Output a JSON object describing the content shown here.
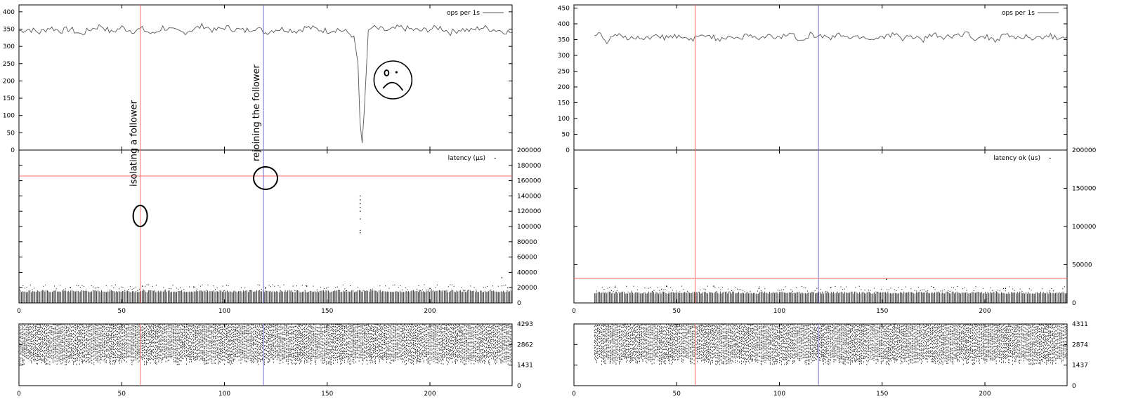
{
  "chart_data": [
    {
      "type": "line",
      "panel": "left-throughput",
      "legend": "ops per 1s",
      "legend_position": "top-right",
      "xlim": [
        0,
        240
      ],
      "ylim": [
        0,
        420
      ],
      "yticks": [
        "0",
        "50",
        "100",
        "150",
        "200",
        "250",
        "300",
        "350",
        "400"
      ],
      "series": [
        {
          "name": "ops per 1s",
          "x": [
            0,
            5,
            10,
            15,
            20,
            25,
            30,
            35,
            40,
            45,
            50,
            55,
            60,
            65,
            70,
            75,
            80,
            85,
            90,
            95,
            100,
            105,
            110,
            115,
            120,
            125,
            130,
            135,
            140,
            145,
            150,
            155,
            160,
            163,
            165,
            166,
            167,
            168,
            170,
            172,
            175,
            180,
            185,
            190,
            195,
            200,
            205,
            210,
            215,
            220,
            225,
            230,
            235,
            240
          ],
          "y": [
            345,
            350,
            340,
            355,
            345,
            350,
            335,
            350,
            360,
            340,
            355,
            345,
            350,
            335,
            355,
            345,
            340,
            350,
            360,
            345,
            355,
            350,
            345,
            355,
            340,
            350,
            350,
            345,
            355,
            350,
            345,
            350,
            340,
            330,
            250,
            80,
            20,
            110,
            340,
            355,
            350,
            345,
            355,
            350,
            345,
            350,
            355,
            340,
            350,
            345,
            355,
            350,
            345,
            340
          ]
        }
      ],
      "annotations": [
        {
          "text": "isolating a follower",
          "x": 59
        },
        {
          "text": "rejoining the follower",
          "x": 118
        },
        {
          "text": "☹",
          "x": 182
        }
      ]
    },
    {
      "type": "scatter",
      "panel": "left-latency",
      "legend": "latency (μs)",
      "legend_position": "top-right",
      "xlim": [
        0,
        240
      ],
      "ylim": [
        0,
        200000
      ],
      "yticks": [
        "0",
        "20000",
        "40000",
        "60000",
        "80000",
        "100000",
        "120000",
        "140000",
        "160000",
        "180000",
        "200000"
      ],
      "xticks": [
        "0",
        "50",
        "100",
        "150",
        "200"
      ],
      "threshold": 166000,
      "series": [
        {
          "name": "latency (μs)",
          "band": [
            0,
            14000
          ],
          "outliers": [
            [
              25,
              20000
            ],
            [
              60,
              22000
            ],
            [
              85,
              21000
            ],
            [
              120,
              20000
            ],
            [
              140,
              22000
            ],
            [
              166,
              95000
            ],
            [
              166,
              92000
            ],
            [
              166,
              110000
            ],
            [
              166,
              120000
            ],
            [
              166,
              125000
            ],
            [
              166,
              130000
            ],
            [
              166,
              135000
            ],
            [
              166,
              140000
            ],
            [
              200,
              19000
            ],
            [
              235,
              33000
            ]
          ]
        }
      ]
    },
    {
      "type": "scatter",
      "panel": "left-size",
      "xlim": [
        0,
        240
      ],
      "ylim": [
        0,
        4293
      ],
      "yticks": [
        "0",
        "1431",
        "2862",
        "4293"
      ],
      "xticks": [
        "0",
        "50",
        "100",
        "150",
        "200"
      ],
      "series": [
        {
          "band": [
            1431,
            4293
          ]
        }
      ]
    },
    {
      "type": "line",
      "panel": "right-throughput",
      "legend": "ops per 1s",
      "legend_position": "top-right",
      "xlim": [
        0,
        240
      ],
      "ylim": [
        0,
        460
      ],
      "yticks": [
        "0",
        "50",
        "100",
        "150",
        "200",
        "250",
        "300",
        "350",
        "400",
        "450"
      ],
      "series": [
        {
          "name": "ops per 1s",
          "x": [
            10,
            13,
            15,
            20,
            25,
            30,
            35,
            40,
            45,
            50,
            55,
            60,
            65,
            70,
            75,
            80,
            85,
            90,
            95,
            100,
            105,
            110,
            115,
            120,
            125,
            130,
            135,
            140,
            145,
            150,
            155,
            160,
            165,
            170,
            175,
            180,
            185,
            190,
            195,
            200,
            205,
            210,
            215,
            220,
            225,
            230,
            235,
            240
          ],
          "y": [
            360,
            375,
            340,
            365,
            355,
            360,
            350,
            365,
            355,
            360,
            350,
            355,
            365,
            350,
            360,
            355,
            365,
            350,
            360,
            355,
            370,
            350,
            365,
            360,
            355,
            365,
            355,
            360,
            350,
            360,
            365,
            355,
            360,
            350,
            365,
            355,
            360,
            370,
            355,
            360,
            350,
            365,
            355,
            360,
            350,
            365,
            355,
            360
          ]
        }
      ]
    },
    {
      "type": "scatter",
      "panel": "right-latency",
      "legend": "latency ok (us)",
      "legend_position": "top-right",
      "xlim": [
        0,
        240
      ],
      "ylim": [
        0,
        200000
      ],
      "yticks": [
        "0",
        "50000",
        "100000",
        "150000",
        "200000"
      ],
      "xticks": [
        "0",
        "50",
        "100",
        "150",
        "200"
      ],
      "threshold": 32000,
      "series": [
        {
          "name": "latency ok (us)",
          "band": [
            0,
            12000
          ],
          "outliers": [
            [
              20,
              20000
            ],
            [
              45,
              22000
            ],
            [
              68,
              22000
            ],
            [
              90,
              19000
            ],
            [
              125,
              20000
            ],
            [
              152,
              31000
            ],
            [
              175,
              20000
            ],
            [
              210,
              19000
            ]
          ]
        }
      ]
    },
    {
      "type": "scatter",
      "panel": "right-size",
      "xlim": [
        0,
        240
      ],
      "ylim": [
        0,
        4311
      ],
      "yticks": [
        "0",
        "1437",
        "2874",
        "4311"
      ],
      "xticks": [
        "0",
        "50",
        "100",
        "150",
        "200"
      ],
      "series": [
        {
          "band": [
            1437,
            4311
          ]
        }
      ]
    }
  ],
  "markers": [
    {
      "x": 59,
      "color": "#ff6b6b"
    },
    {
      "x": 119,
      "color": "#7070c8"
    }
  ]
}
